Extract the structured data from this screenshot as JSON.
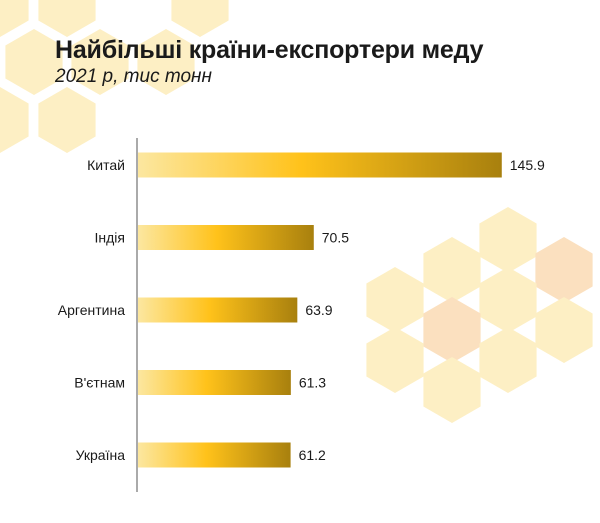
{
  "title": "Найбільші країни-експортери меду",
  "subtitle": "2021 р, тис тонн",
  "colors": {
    "bar_light": "#FCE7A0",
    "bar_mid": "#FFC21A",
    "bar_dark": "#A8800E",
    "honeycomb_light": "#FDEFC4",
    "honeycomb_peach": "#FBE0BF",
    "axis": "#555555",
    "text": "#1a1a1a"
  },
  "chart_data": {
    "type": "bar",
    "orientation": "horizontal",
    "categories": [
      "Китай",
      "Індія",
      "Аргентина",
      "В'єтнам",
      "Україна"
    ],
    "values": [
      145.9,
      70.5,
      63.9,
      61.3,
      61.2
    ],
    "xlim": [
      0,
      150
    ],
    "grid": false,
    "legend": "none",
    "value_labels": true
  }
}
